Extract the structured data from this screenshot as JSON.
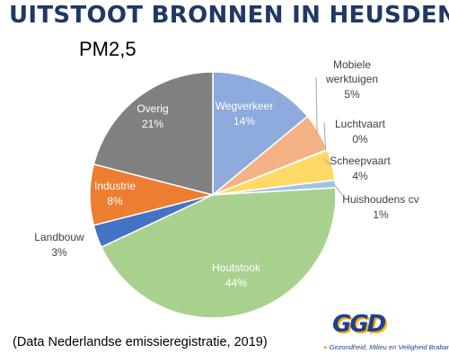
{
  "header": {
    "title": "UITSTOOT BRONNEN IN HEUSDEN",
    "subtitle": "PM2,5"
  },
  "footer": {
    "source": "(Data Nederlandse emissieregistratie, 2019)"
  },
  "logo": {
    "text": "GGD",
    "tagline": "Gezondheid, Milieu en Veiligheid Brabant",
    "colors": {
      "blue": "#1f3e99",
      "yellow": "#f2b400"
    }
  },
  "chart_data": {
    "type": "pie",
    "title": "PM2,5",
    "start_angle_deg": 0,
    "direction": "clockwise",
    "slices": [
      {
        "label": "Wegverkeer",
        "value": 14,
        "display": "14%",
        "color": "#8faadc",
        "label_inside": true
      },
      {
        "label": "Mobiele werktuigen",
        "value": 5,
        "display": "5%",
        "color": "#f4b183",
        "label_inside": false
      },
      {
        "label": "Luchtvaart",
        "value": 0.1,
        "display": "0%",
        "color": "#a5a5a5",
        "label_inside": false
      },
      {
        "label": "Scheepvaart",
        "value": 4,
        "display": "4%",
        "color": "#ffd966",
        "label_inside": false
      },
      {
        "label": "Huishoudens cv",
        "value": 1,
        "display": "1%",
        "color": "#9dc3e6",
        "label_inside": false
      },
      {
        "label": "Houtstook",
        "value": 44,
        "display": "44%",
        "color": "#a9d18e",
        "label_inside": true
      },
      {
        "label": "Landbouw",
        "value": 3,
        "display": "3%",
        "color": "#4472c4",
        "label_inside": false
      },
      {
        "label": "Industrie",
        "value": 8,
        "display": "8%",
        "color": "#ed7d31",
        "label_inside": true
      },
      {
        "label": "Overig",
        "value": 21,
        "display": "21%",
        "color": "#808080",
        "label_inside": true
      }
    ]
  }
}
